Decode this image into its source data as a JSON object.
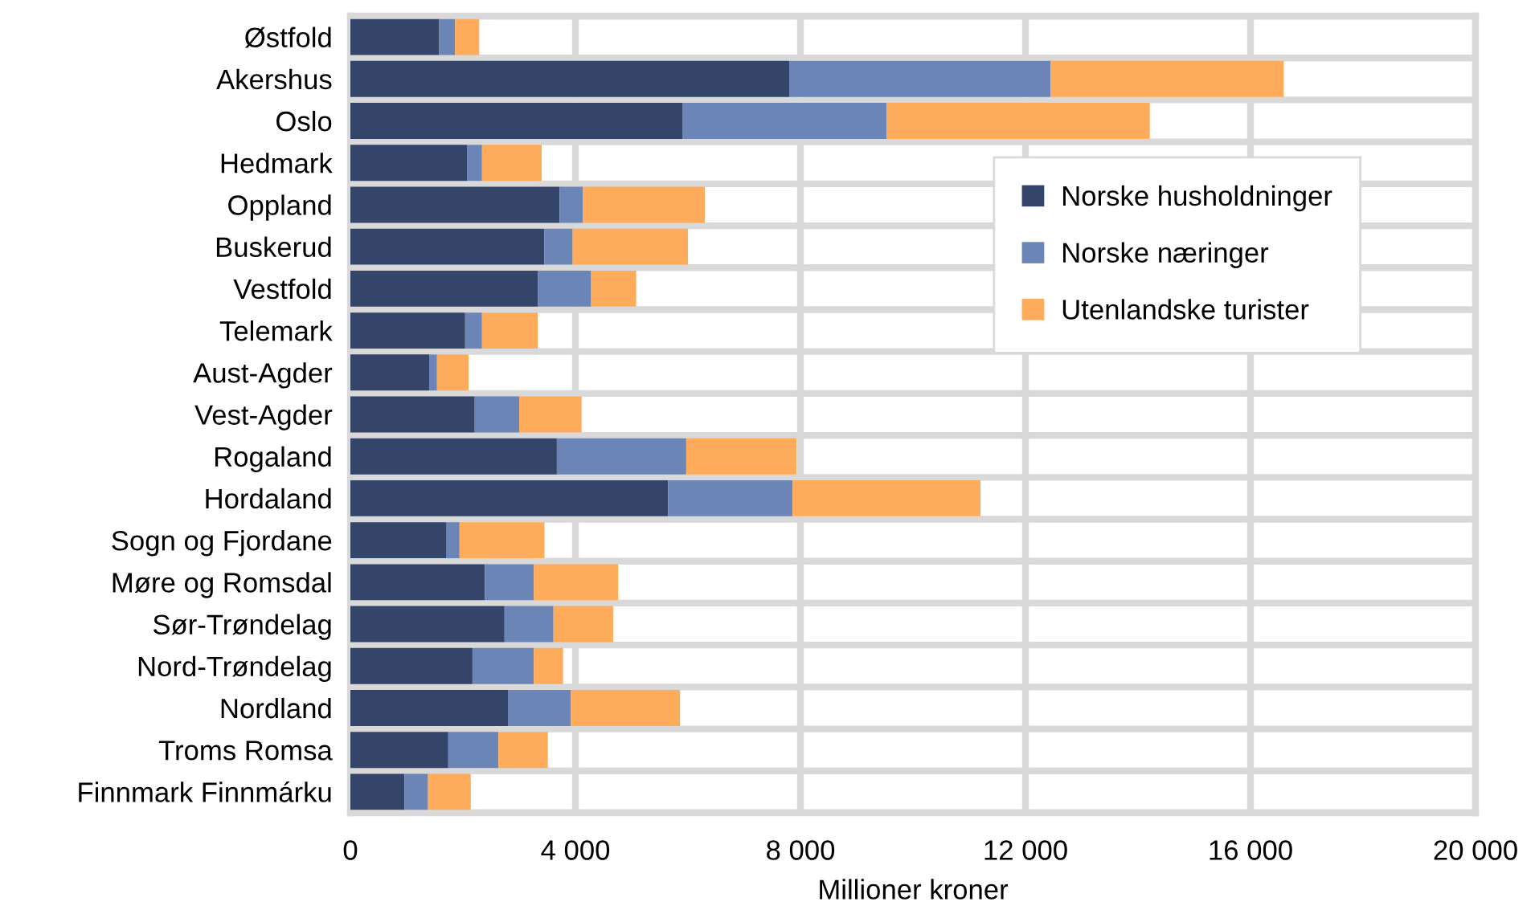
{
  "chart_data": {
    "type": "bar",
    "orientation": "horizontal",
    "stacked": true,
    "xlabel": "Millioner kroner",
    "categories": [
      "Østfold",
      "Akershus",
      "Oslo",
      "Hedmark",
      "Oppland",
      "Buskerud",
      "Vestfold",
      "Telemark",
      "Aust-Agder",
      "Vest-Agder",
      "Rogaland",
      "Hordaland",
      "Sogn og Fjordane",
      "Møre og Romsdal",
      "Sør-Trøndelag",
      "Nord-Trøndelag",
      "Nordland",
      "Troms Romsa",
      "Finnmark Finnmárku"
    ],
    "series": [
      {
        "name": "Norske husholdninger",
        "color": "#344569",
        "values": [
          1580,
          7800,
          5900,
          2080,
          3720,
          3450,
          3330,
          2040,
          1400,
          2210,
          3670,
          5650,
          1710,
          2390,
          2740,
          2170,
          2800,
          1740,
          960
        ]
      },
      {
        "name": "Norske næringer",
        "color": "#6b86b6",
        "values": [
          280,
          4650,
          3630,
          260,
          410,
          500,
          950,
          300,
          140,
          790,
          2300,
          2210,
          230,
          870,
          870,
          1090,
          1120,
          890,
          420
        ]
      },
      {
        "name": "Utenlandske turister",
        "color": "#ffab5c",
        "values": [
          430,
          4140,
          4680,
          1060,
          2170,
          2050,
          800,
          990,
          560,
          1110,
          1960,
          3340,
          1510,
          1500,
          1060,
          520,
          1940,
          880,
          760
        ]
      }
    ],
    "xlim": [
      0,
      20000
    ],
    "xticks": [
      {
        "value": 0,
        "label": "0"
      },
      {
        "value": 4000,
        "label": "4 000"
      },
      {
        "value": 8000,
        "label": "8 000"
      },
      {
        "value": 12000,
        "label": "12 000"
      },
      {
        "value": 16000,
        "label": "16 000"
      },
      {
        "value": 20000,
        "label": "20 000"
      }
    ],
    "grid": true,
    "legend": "right"
  }
}
